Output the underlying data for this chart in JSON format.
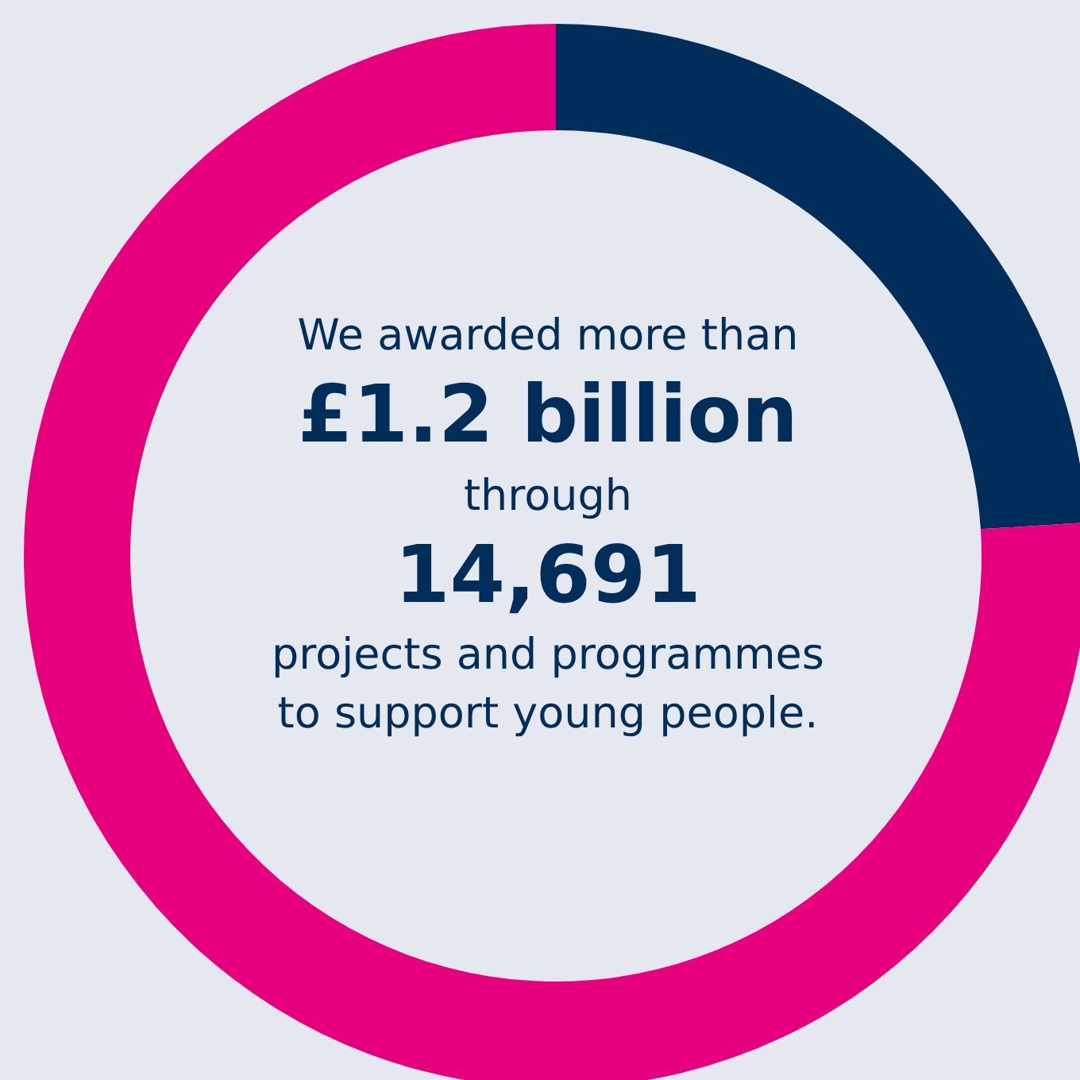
{
  "chart_data": {
    "type": "donut",
    "categories": [
      null,
      null
    ],
    "values": [
      24,
      76
    ],
    "colors": [
      "#002d5a",
      "#e6007e"
    ],
    "annotations": [
      "We awarded more than",
      "£1.2 billion",
      "through",
      "14,691",
      "projects and programmes",
      "to support young people."
    ]
  }
}
